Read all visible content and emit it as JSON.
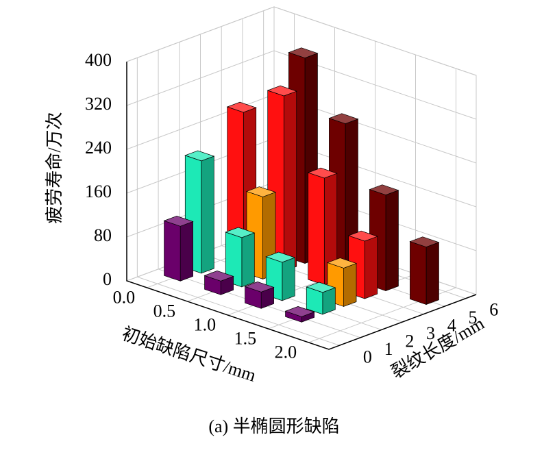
{
  "chart_data": {
    "type": "bar3d",
    "caption": "(a) 半椭圆形缺陷",
    "x_label": "初始缺陷尺寸/mm",
    "y_label": "裂纹长度/mm",
    "z_label": "疲劳寿命/万次",
    "categories": [
      "0.0",
      "0.5",
      "1.0",
      "1.5",
      "2.0"
    ],
    "ylim": [
      -0.5,
      6.5
    ],
    "yticks": [
      0,
      1,
      2,
      3,
      4,
      5,
      6
    ],
    "zlim": [
      0,
      400
    ],
    "zticks": [
      0,
      80,
      160,
      240,
      320,
      400
    ],
    "grid": true,
    "series": [
      {
        "color": "#6a006a",
        "y": 1,
        "values": [
          100,
          25,
          30,
          10,
          null
        ]
      },
      {
        "color": "#1de9b6",
        "y": 2,
        "values": [
          205,
          90,
          70,
          40,
          null
        ]
      },
      {
        "color": "#ff9a00",
        "y": 3,
        "values": [
          null,
          150,
          null,
          70,
          null
        ]
      },
      {
        "color": "#ff1010",
        "y": 4,
        "values": [
          265,
          320,
          195,
          105,
          null
        ]
      },
      {
        "color": "#6e0000",
        "y": 5,
        "values": [
          null,
          375,
          280,
          175,
          105
        ]
      }
    ]
  }
}
